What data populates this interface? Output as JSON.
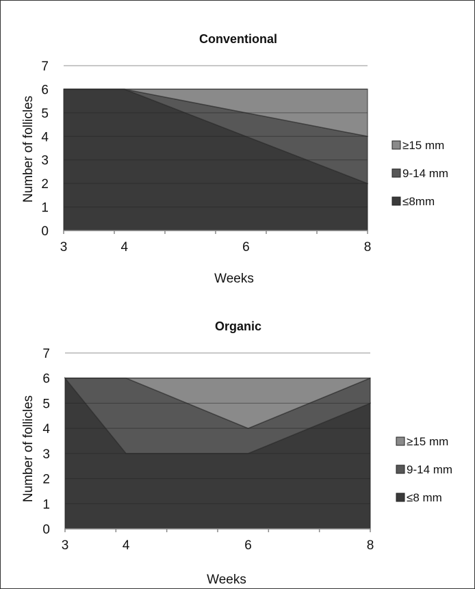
{
  "chart_data": [
    {
      "type": "area",
      "stacked": true,
      "title": "Conventional",
      "xlabel": "Weeks",
      "ylabel": "Number of follicles",
      "categories": [
        "3",
        "4",
        "6",
        "8"
      ],
      "ylim": [
        0,
        7
      ],
      "yticks": [
        "0",
        "1",
        "2",
        "3",
        "4",
        "5",
        "6",
        "7"
      ],
      "grid": true,
      "legend_position": "right",
      "series": [
        {
          "name": "≤8mm",
          "values": [
            6,
            6,
            4,
            2
          ],
          "color": "#3a3a3a"
        },
        {
          "name": "9-14 mm",
          "values": [
            0,
            0,
            1,
            2
          ],
          "color": "#575757"
        },
        {
          "name": "≥15 mm",
          "values": [
            0,
            0,
            1,
            2
          ],
          "color": "#8a8a8a"
        }
      ]
    },
    {
      "type": "area",
      "stacked": true,
      "title": "Organic",
      "xlabel": "Weeks",
      "ylabel": "Number of follicles",
      "categories": [
        "3",
        "4",
        "6",
        "8"
      ],
      "ylim": [
        0,
        7
      ],
      "yticks": [
        "0",
        "1",
        "2",
        "3",
        "4",
        "5",
        "6",
        "7"
      ],
      "grid": true,
      "legend_position": "right",
      "series": [
        {
          "name": "≤8 mm",
          "values": [
            6,
            3,
            3,
            5
          ],
          "color": "#3a3a3a"
        },
        {
          "name": "9-14 mm",
          "values": [
            0,
            3,
            1,
            1
          ],
          "color": "#575757"
        },
        {
          "name": "≥15 mm",
          "values": [
            0,
            0,
            2,
            0
          ],
          "color": "#8a8a8a"
        }
      ]
    }
  ]
}
